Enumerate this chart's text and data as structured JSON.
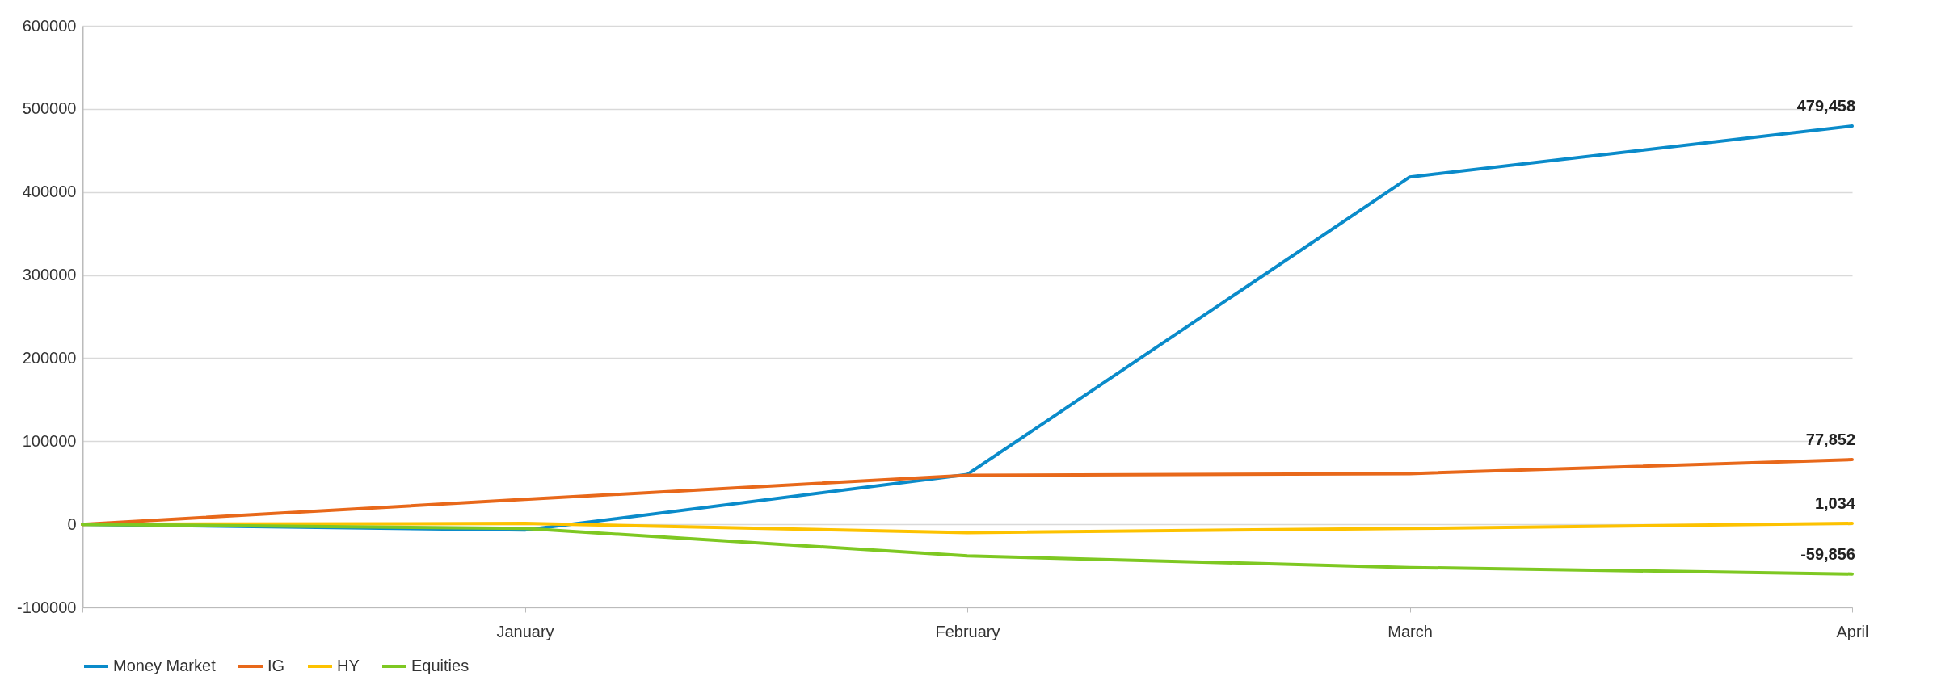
{
  "chart_data": {
    "type": "line",
    "categories": [
      null,
      "January",
      "February",
      "March",
      "April"
    ],
    "series": [
      {
        "name": "Money Market",
        "color": "#0a8bca",
        "values": [
          0,
          -7000,
          60000,
          418000,
          479458
        ],
        "value_labels": [
          null,
          null,
          null,
          null,
          "479,458"
        ]
      },
      {
        "name": "IG",
        "color": "#e8681a",
        "values": [
          0,
          30000,
          59000,
          61000,
          77852
        ],
        "value_labels": [
          null,
          null,
          null,
          null,
          "77,852"
        ]
      },
      {
        "name": "HY",
        "color": "#fdc200",
        "values": [
          0,
          1000,
          -10000,
          -5000,
          1034
        ],
        "value_labels": [
          null,
          null,
          null,
          null,
          "1,034"
        ]
      },
      {
        "name": "Equities",
        "color": "#7ec822",
        "values": [
          0,
          -5000,
          -38000,
          -52000,
          -59856
        ],
        "value_labels": [
          null,
          null,
          null,
          null,
          "-59,856"
        ]
      }
    ],
    "ylim": [
      -100000,
      600000
    ],
    "yticks": [
      -100000,
      0,
      100000,
      200000,
      300000,
      400000,
      500000,
      600000
    ],
    "grid": "y",
    "legend": "bottom",
    "marker": "none",
    "line_style": "solid"
  }
}
